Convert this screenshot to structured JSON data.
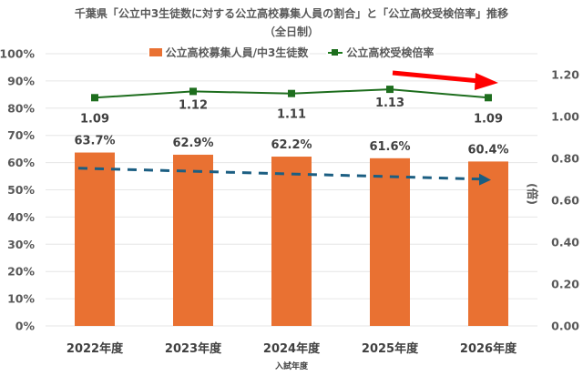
{
  "title_line1": "千葉県「公立中3生徒数に対する公立高校募集人員の割合」と「公立高校受検倍率」推移",
  "title_line2": "（全日制）",
  "legend": {
    "bar_label": "公立高校募集人員/中3生徒数",
    "line_label": "公立高校受検倍率"
  },
  "colors": {
    "bar": "#E97132",
    "line": "#1E6E1E",
    "trend_dashed": "#1B5E82",
    "trend_arrow_red": "#FF0000",
    "grid": "#E6E6E6"
  },
  "chart_data": {
    "type": "bar+line",
    "title": "千葉県「公立中3生徒数に対する公立高校募集人員の割合」と「公立高校受検倍率」推移（全日制）",
    "xlabel": "入試年度",
    "ylabel_left": "",
    "ylabel_right": "(倍)",
    "categories": [
      "2022年度",
      "2023年度",
      "2024年度",
      "2025年度",
      "2026年度"
    ],
    "series": [
      {
        "name": "公立高校募集人員/中3生徒数",
        "type": "bar",
        "axis": "left",
        "values": [
          63.7,
          62.9,
          62.2,
          61.6,
          60.4
        ],
        "labels": [
          "63.7%",
          "62.9%",
          "62.2%",
          "61.6%",
          "60.4%"
        ]
      },
      {
        "name": "公立高校受検倍率",
        "type": "line",
        "axis": "right",
        "values": [
          1.09,
          1.12,
          1.11,
          1.13,
          1.09
        ],
        "labels": [
          "1.09",
          "1.12",
          "1.11",
          "1.13",
          "1.09"
        ]
      }
    ],
    "ylim_left": [
      0,
      100
    ],
    "yticks_left": [
      "0%",
      "10%",
      "20%",
      "30%",
      "40%",
      "50%",
      "60%",
      "70%",
      "80%",
      "90%",
      "100%"
    ],
    "ylim_right": [
      0,
      1.3
    ],
    "yticks_right": [
      "0.00",
      "0.20",
      "0.40",
      "0.60",
      "0.80",
      "1.00",
      "1.20"
    ],
    "annotations": [
      "dashed blue downward trend arrow over bars",
      "red downward trend arrow near 2025-2026 ratio"
    ],
    "grid": true,
    "legend_position": "top"
  }
}
